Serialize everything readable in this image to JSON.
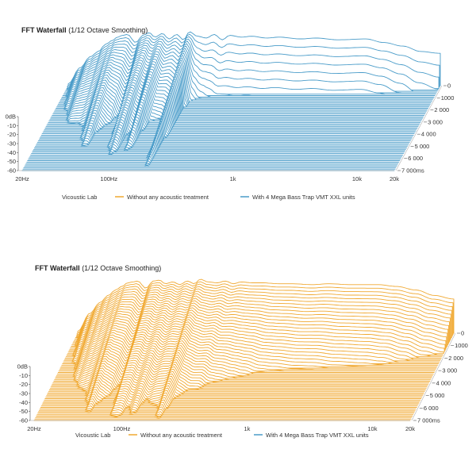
{
  "chart_data": [
    {
      "type": "area",
      "title": "FFT Waterfall",
      "subtitle": "(1/12 Octave Smoothing)",
      "x_ticks": [
        "20Hz",
        "100Hz",
        "1k",
        "10k",
        "20k"
      ],
      "x_tick_values": [
        20,
        100,
        1000,
        10000,
        20000
      ],
      "y_ticks": [
        "0dB",
        "-10",
        "-20",
        "-30",
        "-40",
        "-50",
        "-60"
      ],
      "ylim": [
        -60,
        0
      ],
      "z_ticks": [
        "0",
        "1000",
        "2 000",
        "3 000",
        "4 000",
        "5 000",
        "6 000",
        "7 000ms"
      ],
      "zlim": [
        0,
        7000
      ],
      "legend": {
        "brand": "Vicoustic Lab",
        "entries": [
          {
            "label": "Without any acoustic treatment",
            "color": "#f0a830"
          },
          {
            "label": "With 4 Mega Bass Trap VMT XXL units",
            "color": "#4a9cc9"
          }
        ],
        "placement": "bottom"
      },
      "series": [
        {
          "color": "#4a9cc9",
          "frequencies_hz": [
            20,
            25,
            30,
            35,
            40,
            45,
            50,
            55,
            60,
            70,
            80,
            90,
            100,
            115,
            130,
            150,
            170,
            190,
            220,
            260,
            300,
            350,
            400,
            500,
            600,
            800,
            1000,
            1500,
            2000,
            3000,
            5000,
            7000,
            10000,
            14000,
            20000
          ],
          "level_0ms_db": [
            -58,
            -40,
            -28,
            -22,
            -14,
            -10,
            -6,
            -4,
            -3,
            -12,
            -4,
            -1,
            -6,
            -2,
            -8,
            -3,
            -9,
            0,
            -5,
            -7,
            -3,
            -9,
            -4,
            -6,
            -5,
            -7,
            -6,
            -8,
            -7,
            -9,
            -8,
            -12,
            -16,
            -22,
            -24
          ],
          "decay_ms": [
            7000,
            6500,
            6000,
            5000,
            4500,
            5500,
            5800,
            4000,
            3500,
            3000,
            5600,
            6000,
            4200,
            5800,
            3500,
            3000,
            3000,
            7000,
            1500,
            1200,
            1000,
            1000,
            900,
            900,
            900,
            900,
            900,
            900,
            900,
            900,
            900,
            900,
            800,
            700,
            600
          ]
        }
      ]
    },
    {
      "type": "area",
      "title": "FFT Waterfall",
      "subtitle": "(1/12 Octave Smoothing)",
      "x_ticks": [
        "20Hz",
        "100Hz",
        "1k",
        "10k",
        "20k"
      ],
      "x_tick_values": [
        20,
        100,
        1000,
        10000,
        20000
      ],
      "y_ticks": [
        "0dB",
        "-10",
        "-20",
        "-30",
        "-40",
        "-50",
        "-60"
      ],
      "ylim": [
        -60,
        0
      ],
      "z_ticks": [
        "0",
        "1000",
        "2 000",
        "3 000",
        "4 000",
        "5 000",
        "6 000",
        "7 000ms"
      ],
      "zlim": [
        0,
        7000
      ],
      "legend": {
        "brand": "Vicoustic Lab",
        "entries": [
          {
            "label": "Without any acoustic treatment",
            "color": "#f0a830"
          },
          {
            "label": "With 4 Mega Bass Trap VMT XXL units",
            "color": "#4a9cc9"
          }
        ],
        "placement": "bottom"
      },
      "series": [
        {
          "color": "#f0a830",
          "frequencies_hz": [
            20,
            25,
            30,
            35,
            40,
            45,
            50,
            55,
            60,
            70,
            80,
            90,
            100,
            115,
            130,
            150,
            170,
            190,
            220,
            260,
            300,
            350,
            400,
            500,
            600,
            800,
            1000,
            1500,
            2000,
            3000,
            5000,
            7000,
            10000,
            14000,
            20000
          ],
          "level_0ms_db": [
            -58,
            -38,
            -26,
            -18,
            -12,
            -8,
            -4,
            -3,
            -2,
            -10,
            -2,
            -1,
            -5,
            -3,
            -6,
            -2,
            -5,
            0,
            -3,
            -4,
            -2,
            -5,
            -3,
            -4,
            -4,
            -5,
            -5,
            -6,
            -5,
            -6,
            -6,
            -8,
            -12,
            -18,
            -22
          ],
          "decay_ms": [
            7000,
            7000,
            7000,
            6500,
            6000,
            6500,
            7000,
            6000,
            5500,
            5000,
            7000,
            7000,
            6500,
            7000,
            6000,
            6000,
            6500,
            7000,
            5500,
            5000,
            4800,
            4500,
            4200,
            4000,
            3800,
            3500,
            3400,
            3300,
            3200,
            3100,
            3000,
            3000,
            2900,
            2800,
            2700
          ]
        }
      ]
    }
  ]
}
